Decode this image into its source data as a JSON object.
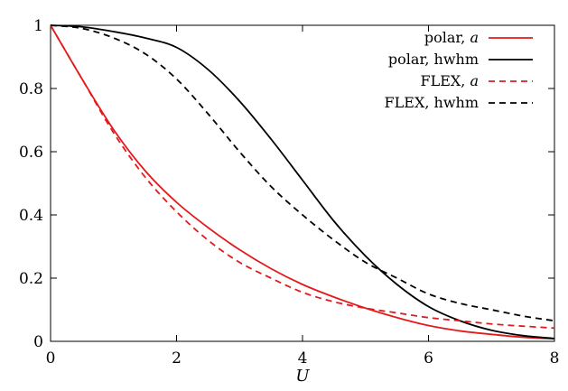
{
  "chart_data": {
    "type": "line",
    "title": "",
    "xlabel": "U",
    "ylabel": "",
    "xlim": [
      0,
      8
    ],
    "ylim": [
      0,
      1
    ],
    "xticks": [
      "0",
      "2",
      "4",
      "6",
      "8"
    ],
    "yticks": [
      "0",
      "0.2",
      "0.4",
      "0.6",
      "0.8",
      "1"
    ],
    "grid": false,
    "legend_position": "top-right",
    "series": [
      {
        "name": "polar, a",
        "legend_prefix": "polar, ",
        "legend_var": "a",
        "color": "#e31a1c",
        "dash": "solid",
        "x": [
          0,
          0.5,
          1,
          1.5,
          2,
          2.5,
          3,
          3.5,
          4,
          4.5,
          5,
          5.5,
          6,
          6.5,
          7,
          7.5,
          8
        ],
        "y": [
          1.0,
          0.83,
          0.67,
          0.54,
          0.44,
          0.36,
          0.29,
          0.23,
          0.18,
          0.14,
          0.105,
          0.075,
          0.05,
          0.033,
          0.022,
          0.013,
          0.008
        ]
      },
      {
        "name": "polar, hwhm",
        "legend_prefix": "polar, hwhm",
        "legend_var": "",
        "color": "#000000",
        "dash": "solid",
        "x": [
          0,
          0.5,
          1,
          1.5,
          2,
          2.5,
          3,
          3.5,
          4,
          4.5,
          5,
          5.5,
          6,
          6.5,
          7,
          7.5,
          8
        ],
        "y": [
          1.0,
          0.995,
          0.98,
          0.96,
          0.93,
          0.86,
          0.76,
          0.64,
          0.51,
          0.38,
          0.27,
          0.18,
          0.11,
          0.065,
          0.035,
          0.018,
          0.009
        ]
      },
      {
        "name": "FLEX, a",
        "legend_prefix": "FLEX, ",
        "legend_var": "a",
        "color": "#e31a1c",
        "dash": "dashed",
        "x": [
          0,
          0.5,
          1,
          1.5,
          2,
          2.5,
          3,
          3.5,
          4,
          4.5,
          5,
          5.5,
          6,
          6.5,
          7,
          7.5,
          8
        ],
        "y": [
          1.0,
          0.83,
          0.66,
          0.52,
          0.41,
          0.32,
          0.25,
          0.2,
          0.155,
          0.125,
          0.105,
          0.09,
          0.075,
          0.065,
          0.055,
          0.048,
          0.042
        ]
      },
      {
        "name": "FLEX, hwhm",
        "legend_prefix": "FLEX, hwhm",
        "legend_var": "",
        "color": "#000000",
        "dash": "dashed",
        "x": [
          0,
          0.5,
          1,
          1.5,
          2,
          2.5,
          3,
          3.5,
          4,
          4.5,
          5,
          5.5,
          6,
          6.5,
          7,
          7.5,
          8
        ],
        "y": [
          1.0,
          0.99,
          0.96,
          0.91,
          0.83,
          0.72,
          0.6,
          0.49,
          0.4,
          0.32,
          0.25,
          0.2,
          0.15,
          0.12,
          0.1,
          0.08,
          0.065
        ]
      }
    ]
  }
}
